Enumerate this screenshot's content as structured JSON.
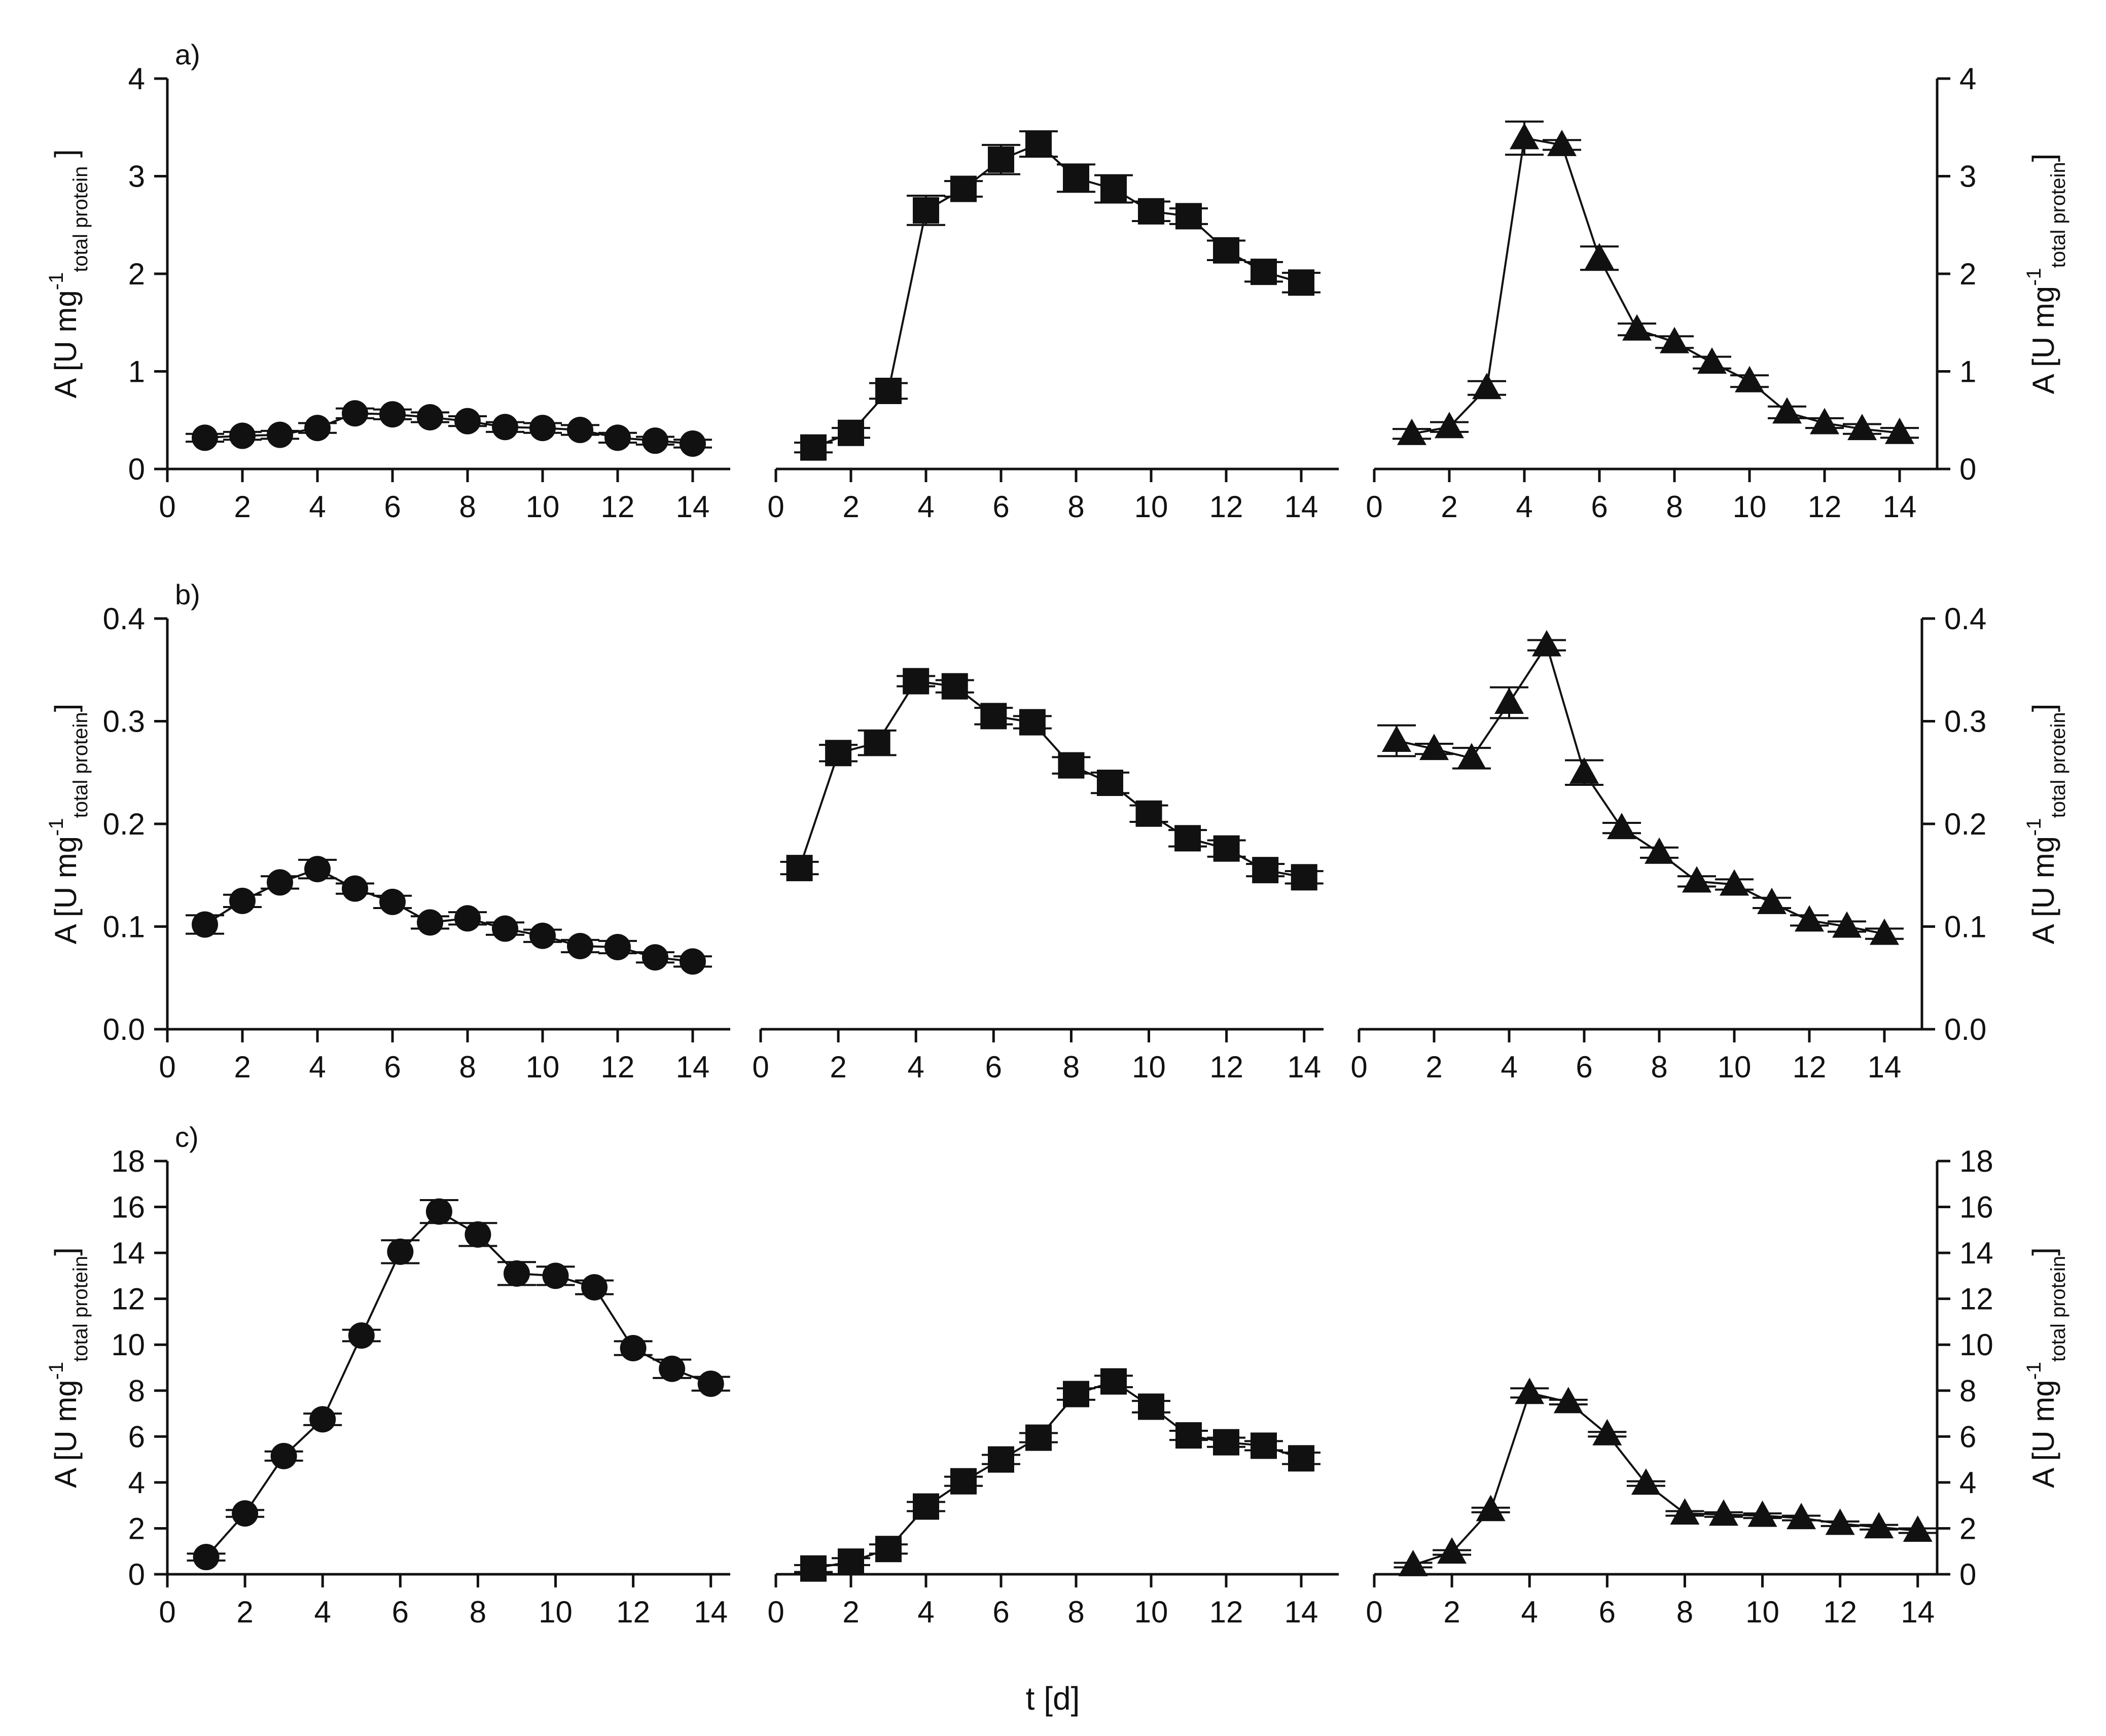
{
  "figure": {
    "x_title": "t [d]",
    "y_title_left": "A [U mg",
    "y_title_sup": "-1",
    "y_title_sub": "total protein",
    "y_title_close": "]",
    "y_title_close_spaced": " ]",
    "colors": {
      "ink": "#111111",
      "background": "#ffffff"
    }
  },
  "chart_data": [
    {
      "type": "line",
      "row": 0,
      "col": 0,
      "panel_label": "a)",
      "marker": "circle",
      "x": [
        1,
        2,
        3,
        4,
        5,
        6,
        7,
        8,
        9,
        10,
        11,
        12,
        13,
        14
      ],
      "y": [
        0.32,
        0.34,
        0.35,
        0.42,
        0.57,
        0.56,
        0.53,
        0.49,
        0.43,
        0.42,
        0.4,
        0.32,
        0.29,
        0.26
      ],
      "err": [
        0.04,
        0.04,
        0.04,
        0.05,
        0.05,
        0.05,
        0.05,
        0.05,
        0.05,
        0.05,
        0.05,
        0.05,
        0.04,
        0.04
      ],
      "xlim": [
        0,
        15
      ],
      "xticks": [
        0,
        2,
        4,
        6,
        8,
        10,
        12,
        14
      ],
      "ylim": [
        0,
        4
      ],
      "yticks": [
        0,
        1,
        2,
        3,
        4
      ],
      "ytick_labels": [
        "0",
        "1",
        "2",
        "3",
        "4"
      ],
      "y_axis": "left",
      "xlabel": "",
      "ylabel": "A [U mg-1 total protein ]"
    },
    {
      "type": "line",
      "row": 0,
      "col": 1,
      "marker": "square",
      "x": [
        1,
        2,
        3,
        4,
        5,
        6,
        7,
        8,
        9,
        10,
        11,
        12,
        13,
        14
      ],
      "y": [
        0.22,
        0.37,
        0.8,
        2.65,
        2.87,
        3.17,
        3.33,
        2.98,
        2.87,
        2.64,
        2.59,
        2.24,
        2.02,
        1.91
      ],
      "err": [
        0.05,
        0.05,
        0.08,
        0.15,
        0.08,
        0.15,
        0.13,
        0.14,
        0.14,
        0.1,
        0.08,
        0.1,
        0.1,
        0.1
      ],
      "xlim": [
        0,
        15
      ],
      "xticks": [
        0,
        2,
        4,
        6,
        8,
        10,
        12,
        14
      ],
      "ylim": [
        0,
        4
      ],
      "y_axis": "none",
      "xlabel": "",
      "ylabel": ""
    },
    {
      "type": "line",
      "row": 0,
      "col": 2,
      "marker": "triangle",
      "x": [
        1,
        2,
        3,
        4,
        5,
        6,
        7,
        8,
        9,
        10,
        11,
        12,
        13,
        14
      ],
      "y": [
        0.36,
        0.43,
        0.83,
        3.39,
        3.32,
        2.16,
        1.43,
        1.3,
        1.09,
        0.9,
        0.58,
        0.47,
        0.41,
        0.37
      ],
      "err": [
        0.05,
        0.05,
        0.07,
        0.17,
        0.05,
        0.12,
        0.06,
        0.06,
        0.06,
        0.06,
        0.06,
        0.05,
        0.05,
        0.05
      ],
      "xlim": [
        0,
        15
      ],
      "xticks": [
        0,
        2,
        4,
        6,
        8,
        10,
        12,
        14
      ],
      "ylim": [
        0,
        4
      ],
      "yticks": [
        0,
        1,
        2,
        3,
        4
      ],
      "ytick_labels": [
        "0",
        "1",
        "2",
        "3",
        "4"
      ],
      "y_axis": "right",
      "xlabel": "",
      "ylabel": "A [U mg-1 total protein]"
    },
    {
      "type": "line",
      "row": 1,
      "col": 0,
      "panel_label": "b)",
      "marker": "circle",
      "x": [
        1,
        2,
        3,
        4,
        5,
        6,
        7,
        8,
        9,
        10,
        11,
        12,
        13,
        14
      ],
      "y": [
        0.102,
        0.125,
        0.143,
        0.156,
        0.137,
        0.124,
        0.104,
        0.108,
        0.098,
        0.091,
        0.081,
        0.08,
        0.07,
        0.066
      ],
      "err": [
        0.009,
        0.006,
        0.006,
        0.009,
        0.005,
        0.006,
        0.006,
        0.006,
        0.006,
        0.006,
        0.006,
        0.006,
        0.005,
        0.005
      ],
      "xlim": [
        0,
        15
      ],
      "xticks": [
        0,
        2,
        4,
        6,
        8,
        10,
        12,
        14
      ],
      "ylim": [
        0,
        0.4
      ],
      "yticks": [
        0,
        0.1,
        0.2,
        0.3,
        0.4
      ],
      "ytick_labels": [
        "0.0",
        "0.1",
        "0.2",
        "0.3",
        "0.4"
      ],
      "y_axis": "left",
      "xlabel": "",
      "ylabel": "A [U mg-1 total protein]"
    },
    {
      "type": "line",
      "row": 1,
      "col": 1,
      "marker": "square",
      "x": [
        1,
        2,
        3,
        4,
        5,
        6,
        7,
        8,
        9,
        10,
        11,
        12,
        13,
        14
      ],
      "y": [
        0.157,
        0.269,
        0.279,
        0.339,
        0.334,
        0.305,
        0.299,
        0.257,
        0.24,
        0.21,
        0.186,
        0.176,
        0.155,
        0.148
      ],
      "err": [
        0.006,
        0.008,
        0.012,
        0.005,
        0.006,
        0.008,
        0.006,
        0.008,
        0.01,
        0.008,
        0.008,
        0.008,
        0.006,
        0.006
      ],
      "xlim": [
        0,
        14.5
      ],
      "xticks": [
        0,
        2,
        4,
        6,
        8,
        10,
        12,
        14
      ],
      "ylim": [
        0,
        0.4
      ],
      "y_axis": "none",
      "xlabel": "",
      "ylabel": ""
    },
    {
      "type": "line",
      "row": 1,
      "col": 2,
      "marker": "triangle",
      "x": [
        1,
        2,
        3,
        4,
        5,
        6,
        7,
        8,
        9,
        10,
        11,
        12,
        13,
        14
      ],
      "y": [
        0.281,
        0.273,
        0.264,
        0.318,
        0.374,
        0.25,
        0.196,
        0.172,
        0.144,
        0.141,
        0.123,
        0.106,
        0.1,
        0.093
      ],
      "err": [
        0.015,
        0.005,
        0.01,
        0.015,
        0.005,
        0.012,
        0.005,
        0.005,
        0.005,
        0.005,
        0.005,
        0.005,
        0.005,
        0.005
      ],
      "xlim": [
        0,
        15
      ],
      "xticks": [
        0,
        2,
        4,
        6,
        8,
        10,
        12,
        14
      ],
      "ylim": [
        0,
        0.4
      ],
      "yticks": [
        0,
        0.1,
        0.2,
        0.3,
        0.4
      ],
      "ytick_labels": [
        "0.0",
        "0.1",
        "0.2",
        "0.3",
        "0.4"
      ],
      "y_axis": "right",
      "xlabel": "",
      "ylabel": "A [U mg-1 total protein]"
    },
    {
      "type": "line",
      "row": 2,
      "col": 0,
      "panel_label": "c)",
      "marker": "circle",
      "x": [
        1,
        2,
        3,
        4,
        5,
        6,
        7,
        8,
        9,
        10,
        11,
        12,
        13,
        14
      ],
      "y": [
        0.75,
        2.65,
        5.15,
        6.75,
        10.4,
        14.05,
        15.8,
        14.8,
        13.1,
        13.0,
        12.5,
        9.85,
        8.95,
        8.3
      ],
      "err": [
        0.15,
        0.15,
        0.2,
        0.25,
        0.25,
        0.5,
        0.5,
        0.5,
        0.5,
        0.4,
        0.3,
        0.3,
        0.4,
        0.3
      ],
      "xlim": [
        0,
        14.5
      ],
      "xticks": [
        0,
        2,
        4,
        6,
        8,
        10,
        12,
        14
      ],
      "ylim": [
        0,
        18
      ],
      "yticks": [
        0,
        2,
        4,
        6,
        8,
        10,
        12,
        14,
        16,
        18
      ],
      "ytick_labels": [
        "0",
        "2",
        "4",
        "6",
        "8",
        "10",
        "12",
        "14",
        "16",
        "18"
      ],
      "y_axis": "left",
      "xlabel": "",
      "ylabel": "A [U mg-1 total protein]"
    },
    {
      "type": "line",
      "row": 2,
      "col": 1,
      "marker": "square",
      "x": [
        1,
        2,
        3,
        4,
        5,
        6,
        7,
        8,
        9,
        10,
        11,
        12,
        13,
        14
      ],
      "y": [
        0.25,
        0.55,
        1.1,
        2.95,
        4.05,
        5.0,
        5.95,
        7.85,
        8.4,
        7.3,
        6.05,
        5.75,
        5.6,
        5.05
      ],
      "err": [
        0.15,
        0.15,
        0.2,
        0.2,
        0.2,
        0.2,
        0.2,
        0.25,
        0.25,
        0.25,
        0.2,
        0.2,
        0.2,
        0.25
      ],
      "xlim": [
        0,
        15
      ],
      "xticks": [
        0,
        2,
        4,
        6,
        8,
        10,
        12,
        14
      ],
      "ylim": [
        0,
        18
      ],
      "y_axis": "none",
      "xlabel": "",
      "ylabel": ""
    },
    {
      "type": "line",
      "row": 2,
      "col": 2,
      "marker": "triangle",
      "x": [
        1,
        2,
        3,
        4,
        5,
        6,
        7,
        8,
        9,
        10,
        11,
        12,
        13,
        14
      ],
      "y": [
        0.4,
        0.95,
        2.8,
        7.9,
        7.5,
        6.1,
        3.95,
        2.65,
        2.6,
        2.55,
        2.45,
        2.2,
        2.05,
        1.9
      ],
      "err": [
        0.1,
        0.1,
        0.1,
        0.2,
        0.1,
        0.1,
        0.1,
        0.1,
        0.1,
        0.1,
        0.1,
        0.1,
        0.1,
        0.1
      ],
      "xlim": [
        0,
        14.5
      ],
      "xticks": [
        0,
        2,
        4,
        6,
        8,
        10,
        12,
        14
      ],
      "ylim": [
        0,
        18
      ],
      "yticks": [
        0,
        2,
        4,
        6,
        8,
        10,
        12,
        14,
        16,
        18
      ],
      "ytick_labels": [
        "0",
        "2",
        "4",
        "6",
        "8",
        "10",
        "12",
        "14",
        "16",
        "18"
      ],
      "y_axis": "right",
      "xlabel": "",
      "ylabel": "A [U mg-1 total protein]"
    }
  ]
}
